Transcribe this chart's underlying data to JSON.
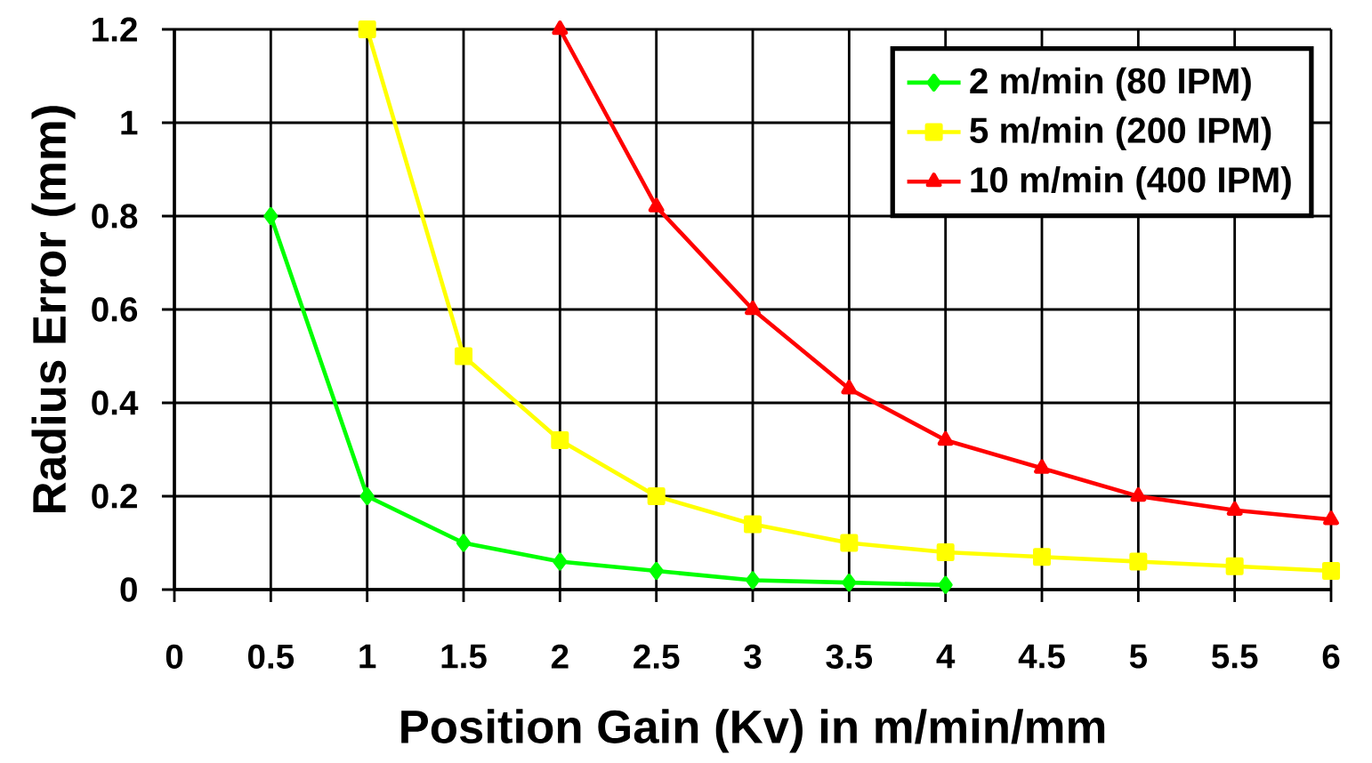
{
  "chart_data": {
    "type": "line",
    "xlabel": "Position Gain (Kv) in m/min/mm",
    "ylabel": "Radius Error (mm)",
    "xlim": [
      0,
      6
    ],
    "xticks": [
      0,
      0.5,
      1,
      1.5,
      2,
      2.5,
      3,
      3.5,
      4,
      4.5,
      5,
      5.5,
      6
    ],
    "ylim": [
      0,
      1.2
    ],
    "yticks": [
      0,
      0.2,
      0.4,
      0.6,
      0.8,
      1,
      1.2
    ],
    "grid": true,
    "legend": "top right",
    "line_style": "solid",
    "series": [
      {
        "name": "2 m/min (80 IPM)",
        "color": "#00ff00",
        "marker": "diamond",
        "x": [
          0.5,
          1,
          1.5,
          2,
          2.5,
          3,
          3.5,
          4
        ],
        "values": [
          0.8,
          0.2,
          0.1,
          0.06,
          0.04,
          0.02,
          0.015,
          0.01
        ]
      },
      {
        "name": "5 m/min (200 IPM)",
        "color": "#ffff00",
        "marker": "square",
        "x": [
          1,
          1.5,
          2,
          2.5,
          3,
          3.5,
          4,
          4.5,
          5,
          5.5,
          6
        ],
        "values": [
          1.2,
          0.5,
          0.32,
          0.2,
          0.14,
          0.1,
          0.08,
          0.07,
          0.06,
          0.05,
          0.04
        ]
      },
      {
        "name": "10 m/min (400 IPM)",
        "color": "#ff0000",
        "marker": "triangle",
        "x": [
          2,
          2.5,
          3,
          3.5,
          4,
          4.5,
          5,
          5.5,
          6
        ],
        "values": [
          1.2,
          0.82,
          0.6,
          0.43,
          0.32,
          0.26,
          0.2,
          0.17,
          0.15
        ]
      }
    ]
  }
}
